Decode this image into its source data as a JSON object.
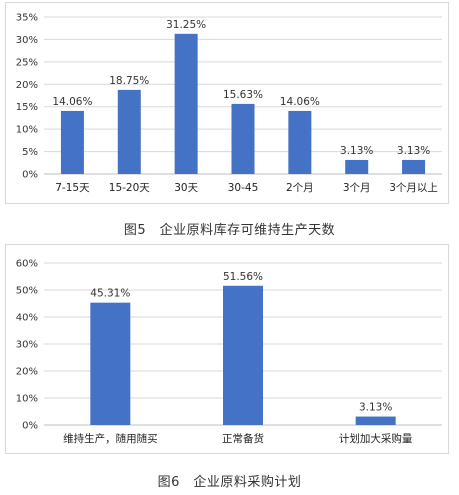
{
  "colors": {
    "bar": "#4472c4",
    "grid": "#d9d9d9",
    "axis": "#bfbfbf"
  },
  "chart_data": [
    {
      "type": "bar",
      "title": "",
      "xlabel": "",
      "ylabel": "",
      "categories": [
        "7-15天",
        "15-20天",
        "30天",
        "30-45",
        "2个月",
        "3个月",
        "3个月以上"
      ],
      "values": [
        14.06,
        18.75,
        31.25,
        15.63,
        14.06,
        3.13,
        3.13
      ],
      "value_labels": [
        "14.06%",
        "18.75%",
        "31.25%",
        "15.63%",
        "14.06%",
        "3.13%",
        "3.13%"
      ],
      "ylim": [
        0,
        35
      ],
      "yticks": [
        0,
        5,
        10,
        15,
        20,
        25,
        30,
        35
      ],
      "ytick_labels": [
        "0%",
        "5%",
        "10%",
        "15%",
        "20%",
        "25%",
        "30%",
        "35%"
      ],
      "grid": true,
      "legend": "none"
    },
    {
      "type": "bar",
      "title": "",
      "xlabel": "",
      "ylabel": "",
      "categories": [
        "维持生产，随用随买",
        "正常备货",
        "计划加大采购量"
      ],
      "values": [
        45.31,
        51.56,
        3.13
      ],
      "value_labels": [
        "45.31%",
        "51.56%",
        "3.13%"
      ],
      "ylim": [
        0,
        60
      ],
      "yticks": [
        0,
        10,
        20,
        30,
        40,
        50,
        60
      ],
      "ytick_labels": [
        "0%",
        "10%",
        "20%",
        "30%",
        "40%",
        "50%",
        "60%"
      ],
      "grid": true,
      "legend": "none"
    }
  ],
  "captions": {
    "fig5": "图5　企业原料库存可维持生产天数",
    "fig6": "图6　企业原料采购计划"
  }
}
